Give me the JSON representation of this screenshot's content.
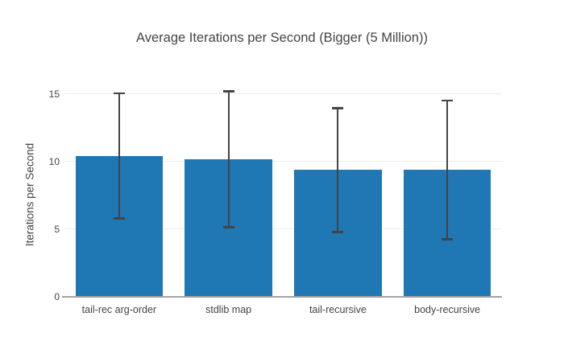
{
  "chart_data": {
    "type": "bar",
    "title": "Average Iterations per Second (Bigger (5 Million))",
    "xlabel": "",
    "ylabel": "Iterations per Second",
    "categories": [
      "tail-rec arg-order",
      "stdlib map",
      "tail-recursive",
      "body-recursive"
    ],
    "values": [
      10.4,
      10.15,
      9.35,
      9.35
    ],
    "error": [
      4.65,
      5.05,
      4.6,
      5.15
    ],
    "yticks": [
      0,
      5,
      10,
      15
    ],
    "ylim": [
      0,
      15.8
    ],
    "grid": true,
    "legend": false,
    "bar_color": "#1f77b4",
    "error_color": "#444444",
    "grid_color": "#ededed",
    "axis_line_color": "#a3a3a3",
    "text_color": "#444444"
  }
}
